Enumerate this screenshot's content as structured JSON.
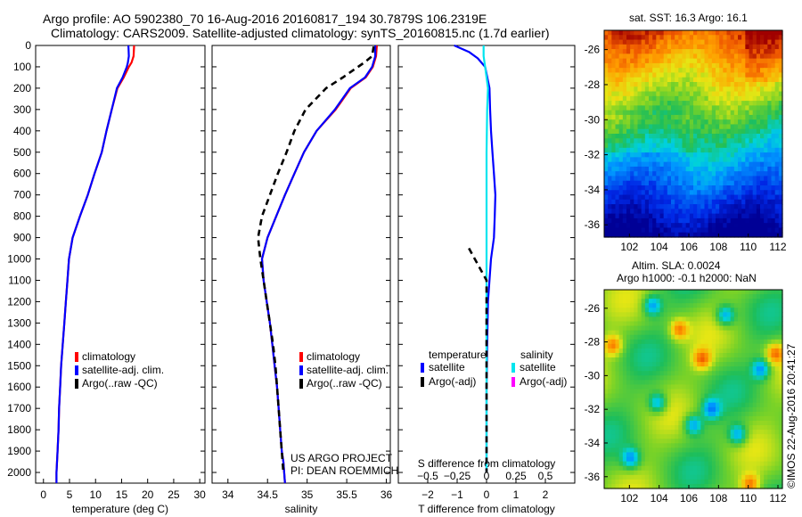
{
  "header": {
    "line1": "Argo profile: AO 5902380_70 16-Aug-2016 20160817_194 30.7879S 106.2319E",
    "line2": "Climatology: CARS2009. Satellite-adjusted climatology: synTS_20160815.nc (1.7d earlier)"
  },
  "colors": {
    "climatology": "#ff0000",
    "satellite_adj": "#0000ff",
    "argo": "#000000",
    "satellite_s": "#00e5ee",
    "argo_s_adj": "#ff00ff"
  },
  "chart_data": [
    {
      "type": "line",
      "id": "temperature",
      "xlabel": "temperature (deg C)",
      "ylabel": "",
      "xlim": [
        -1.5,
        31
      ],
      "ylim": [
        2050,
        0
      ],
      "xticks": [
        0,
        5,
        10,
        15,
        20,
        25,
        30
      ],
      "yticks": [
        0,
        100,
        200,
        300,
        400,
        500,
        600,
        700,
        800,
        900,
        1000,
        1100,
        1200,
        1300,
        1400,
        1500,
        1600,
        1700,
        1800,
        1900,
        2000
      ],
      "legend": [
        "climatology",
        "satellite-adj. clim.",
        "Argo(..raw -QC)"
      ],
      "series": [
        {
          "name": "climatology",
          "color": "#ff0000",
          "dash": false,
          "x": [
            17.4,
            17.3,
            16.9,
            16.4,
            15.4,
            14.2,
            13.1,
            12.1,
            11.2,
            9.8,
            8.5,
            7.0,
            5.6,
            4.9,
            4.6,
            4.3,
            4.0,
            3.7,
            3.4,
            3.2,
            3.0,
            2.9,
            2.7,
            2.6,
            2.5,
            2.5
          ],
          "y": [
            0,
            50,
            80,
            100,
            150,
            200,
            300,
            400,
            500,
            600,
            700,
            800,
            900,
            1000,
            1100,
            1200,
            1300,
            1400,
            1500,
            1600,
            1700,
            1800,
            1900,
            1950,
            2000,
            2050
          ]
        },
        {
          "name": "satellite-adj. clim.",
          "color": "#0000ff",
          "dash": false,
          "x": [
            16.3,
            16.4,
            16.2,
            16.0,
            15.2,
            14.1,
            13.1,
            12.1,
            11.2,
            9.8,
            8.5,
            7.0,
            5.6,
            4.9,
            4.6,
            4.3,
            4.0,
            3.7,
            3.4,
            3.2,
            3.0,
            2.9,
            2.7,
            2.6,
            2.5,
            2.5
          ],
          "y": [
            0,
            50,
            80,
            100,
            150,
            200,
            300,
            400,
            500,
            600,
            700,
            800,
            900,
            1000,
            1100,
            1200,
            1300,
            1400,
            1500,
            1600,
            1700,
            1800,
            1900,
            1950,
            2000,
            2050
          ]
        }
      ]
    },
    {
      "type": "line",
      "id": "salinity",
      "xlabel": "salinity",
      "ylabel": "",
      "xlim": [
        33.8,
        36.05
      ],
      "ylim": [
        2050,
        0
      ],
      "xticks": [
        34,
        34.5,
        35,
        35.5,
        36
      ],
      "xticklabels": [
        "34",
        "34.5",
        "35",
        "35.5",
        "36"
      ],
      "legend": [
        "climatology",
        "satellite-adj. clim.",
        "Argo(..raw -QC)"
      ],
      "annotation": [
        "US ARGO PROJECT",
        "PI: DEAN ROEMMICH"
      ],
      "series": [
        {
          "name": "climatology",
          "color": "#ff0000",
          "dash": false,
          "x": [
            35.88,
            35.87,
            35.83,
            35.74,
            35.55,
            35.36,
            35.12,
            34.96,
            34.84,
            34.72,
            34.61,
            34.5,
            34.43,
            34.45,
            34.49,
            34.53,
            34.56,
            34.59,
            34.62,
            34.64,
            34.66,
            34.68,
            34.7,
            34.71,
            34.72
          ],
          "y": [
            0,
            50,
            100,
            150,
            200,
            300,
            400,
            500,
            600,
            700,
            800,
            900,
            1000,
            1100,
            1200,
            1300,
            1400,
            1500,
            1600,
            1700,
            1800,
            1900,
            1950,
            2000,
            2050
          ]
        },
        {
          "name": "satellite-adj. clim.",
          "color": "#0000ff",
          "dash": false,
          "x": [
            35.86,
            35.86,
            35.82,
            35.73,
            35.54,
            35.35,
            35.12,
            34.96,
            34.84,
            34.72,
            34.61,
            34.5,
            34.43,
            34.45,
            34.49,
            34.53,
            34.56,
            34.59,
            34.62,
            34.64,
            34.66,
            34.68,
            34.7,
            34.71,
            34.72
          ],
          "y": [
            0,
            50,
            100,
            150,
            200,
            300,
            400,
            500,
            600,
            700,
            800,
            900,
            1000,
            1100,
            1200,
            1300,
            1400,
            1500,
            1600,
            1700,
            1800,
            1900,
            1950,
            2000,
            2050
          ]
        },
        {
          "name": "Argo(..raw -QC)",
          "color": "#000000",
          "dash": true,
          "x": [
            35.84,
            35.82,
            35.72,
            35.45,
            35.24,
            34.98,
            34.84,
            34.74,
            34.63,
            34.53,
            34.43,
            34.38,
            34.41,
            34.45,
            34.49,
            34.53,
            34.57,
            34.6,
            34.62,
            34.64,
            34.66,
            34.68,
            34.69,
            34.7
          ],
          "y": [
            5,
            50,
            80,
            150,
            200,
            300,
            400,
            500,
            600,
            700,
            800,
            900,
            1000,
            1100,
            1200,
            1300,
            1400,
            1500,
            1600,
            1700,
            1800,
            1900,
            1950,
            2000
          ]
        }
      ]
    },
    {
      "type": "line",
      "id": "difference",
      "xlabel": "T difference from climatology",
      "ylabel": "",
      "xlim": [
        -3.0,
        3.0
      ],
      "ylim": [
        2050,
        0
      ],
      "xticks": [
        -2,
        -1,
        0,
        1,
        2
      ],
      "xticklabels": [
        "−2",
        "−1",
        "0",
        "1",
        "2"
      ],
      "top_axis_label": "S difference from climatology",
      "top_ticks": [
        -0.5,
        -0.25,
        0,
        0.25,
        0.5
      ],
      "top_ticklabels": [
        "−0.5",
        "−0.25",
        "0",
        "0.25",
        "0.5"
      ],
      "legend_headers": [
        "temperature",
        "salinity"
      ],
      "legend": [
        "satellite",
        "Argo(-adj)",
        "satellite",
        "Argo(-adj)"
      ],
      "series": [
        {
          "name": "satellite",
          "color": "#0000ff",
          "dash": false,
          "x": [
            -1.1,
            -0.6,
            -0.3,
            -0.05,
            0.1,
            0.12,
            0.15,
            0.2,
            0.25,
            0.3,
            0.28,
            0.25,
            0.15,
            0.1,
            0.05,
            0.02,
            0.0,
            0.0,
            0.0
          ],
          "y": [
            0,
            30,
            60,
            100,
            200,
            300,
            400,
            500,
            600,
            700,
            800,
            900,
            1000,
            1100,
            1200,
            1400,
            1600,
            1800,
            2000
          ]
        },
        {
          "name": "satellite",
          "color": "#00e5ee",
          "dash": false,
          "x": [
            -0.1,
            -0.1,
            -0.05,
            0.0,
            0.05,
            0.02,
            0.0,
            0.0,
            0.0,
            0.0,
            0.0,
            0.0,
            0.0,
            0.0,
            0.0
          ],
          "y": [
            0,
            50,
            100,
            150,
            200,
            300,
            500,
            700,
            900,
            1100,
            1300,
            1500,
            1700,
            1900,
            2000
          ]
        },
        {
          "name": "Argo(-adj)",
          "color": "#000000",
          "dash": true,
          "x": [
            -0.6,
            -0.4,
            -0.2,
            0.0,
            0.0,
            0.0,
            0.0,
            0.0,
            0.0
          ],
          "y": [
            950,
            1000,
            1050,
            1100,
            1200,
            1400,
            1600,
            1800,
            2000
          ]
        }
      ]
    }
  ],
  "map_sst": {
    "title": "sat. SST: 16.3 Argo: 16.1",
    "xticks": [
      102,
      104,
      106,
      108,
      110,
      112
    ],
    "yticks": [
      -26,
      -28,
      -30,
      -32,
      -34,
      -36
    ],
    "xlim": [
      100.3,
      112.3
    ],
    "ylim": [
      -36.7,
      -24.9
    ]
  },
  "map_sla": {
    "title_line1": "Altim. SLA: 0.0024",
    "title_line2": "Argo h1000: -0.1 h2000: NaN",
    "xticks": [
      102,
      104,
      106,
      108,
      110,
      112
    ],
    "yticks": [
      -26,
      -28,
      -30,
      -32,
      -34,
      -36
    ],
    "xlim": [
      100.3,
      112.3
    ],
    "ylim": [
      -36.7,
      -24.9
    ]
  },
  "credit": "©IMOS 22-Aug-2016 20:41:27"
}
